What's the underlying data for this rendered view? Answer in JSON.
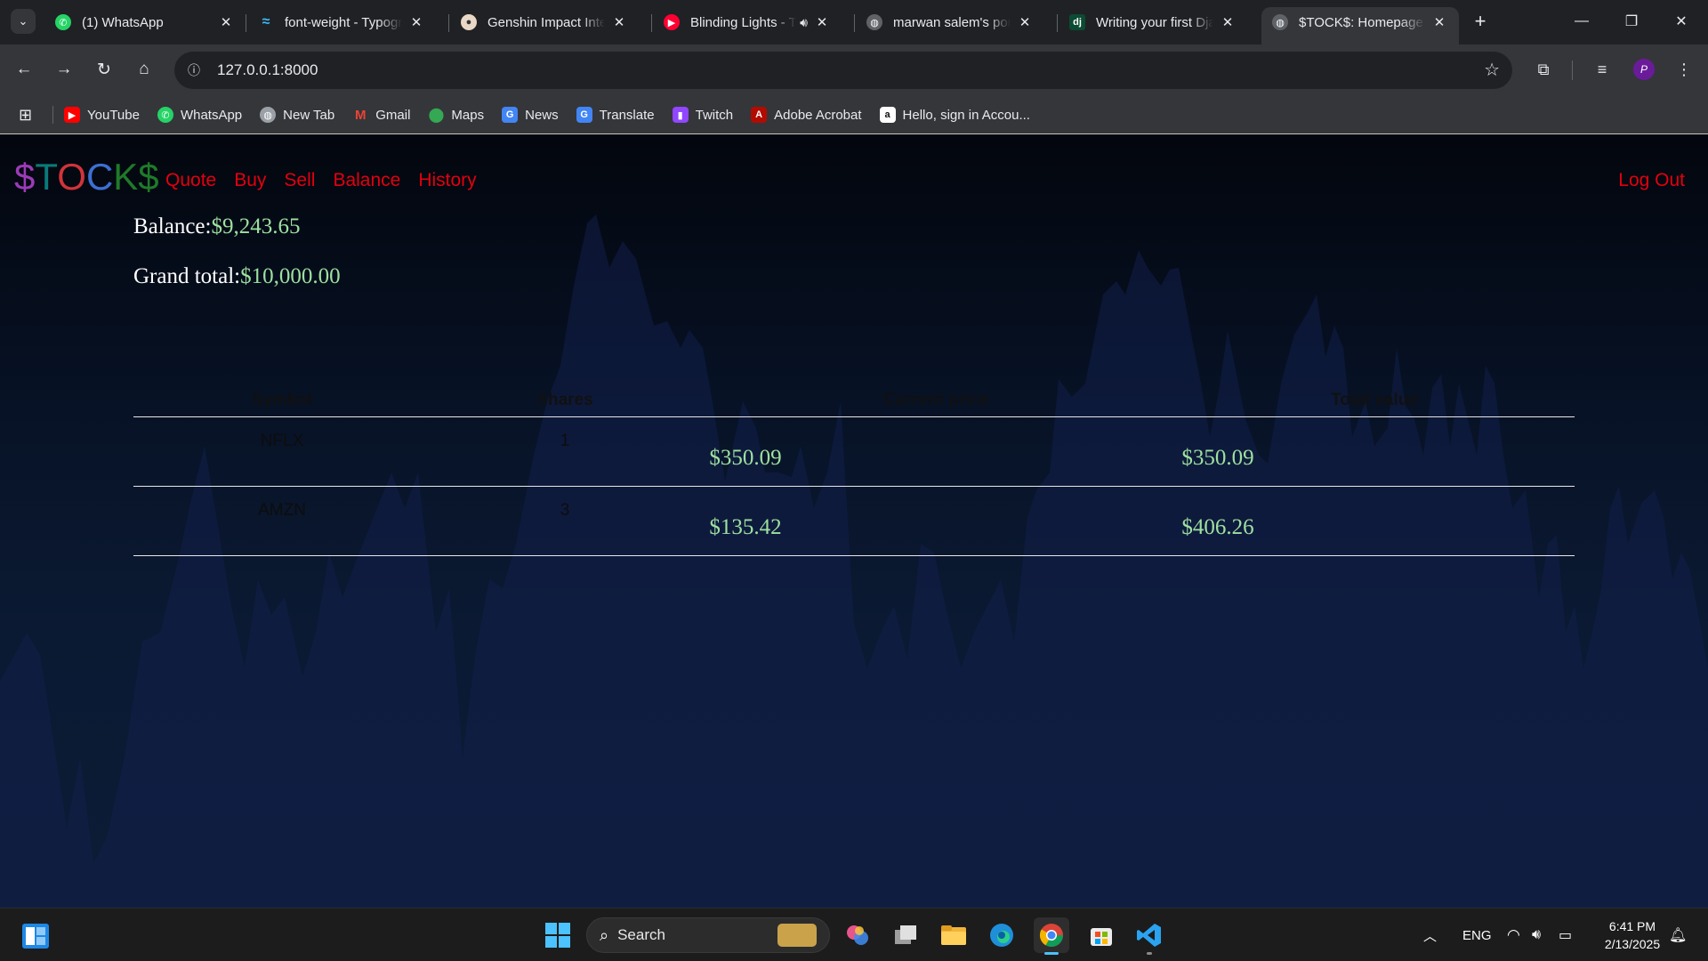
{
  "browser": {
    "tabs": [
      {
        "label": "(1) WhatsApp",
        "icon": "whatsapp-icon",
        "badge": "1"
      },
      {
        "label": "font-weight - Typography",
        "icon": "tailwind-icon"
      },
      {
        "label": "Genshin Impact Interactive",
        "icon": "genshin-icon"
      },
      {
        "label": "Blinding Lights - The Weeknd",
        "icon": "youtube-music-icon",
        "audio": true
      },
      {
        "label": "marwan salem's portfolio",
        "icon": "globe-icon"
      },
      {
        "label": "Writing your first Django app",
        "icon": "django-icon",
        "fav_text": "dj"
      },
      {
        "label": "$TOCK$: Homepage",
        "icon": "globe-icon",
        "active": true
      }
    ],
    "url": "127.0.0.1:8000",
    "profile_initial": "P",
    "bookmarks": [
      {
        "label": "YouTube",
        "icon": "youtube-icon",
        "color": "#ff0000"
      },
      {
        "label": "WhatsApp",
        "icon": "whatsapp-icon",
        "color": "#25d366"
      },
      {
        "label": "New Tab",
        "icon": "globe-icon",
        "color": "#9aa0a6"
      },
      {
        "label": "Gmail",
        "icon": "gmail-icon",
        "color": "#ea4335"
      },
      {
        "label": "Maps",
        "icon": "maps-icon",
        "color": "#34a853"
      },
      {
        "label": "News",
        "icon": "news-icon",
        "color": "#4285f4"
      },
      {
        "label": "Translate",
        "icon": "translate-icon",
        "color": "#4285f4"
      },
      {
        "label": "Twitch",
        "icon": "twitch-icon",
        "color": "#9146ff"
      },
      {
        "label": "Adobe Acrobat",
        "icon": "acrobat-icon",
        "color": "#b30b00"
      },
      {
        "label": "Hello, sign in Accou...",
        "icon": "amazon-icon",
        "color": "#ffffff"
      }
    ]
  },
  "app": {
    "brand_letters": [
      {
        "ch": "$",
        "color": "#9b3bb8"
      },
      {
        "ch": "T",
        "color": "#0a7a7a"
      },
      {
        "ch": "O",
        "color": "#d0343a"
      },
      {
        "ch": "C",
        "color": "#3d6fd1"
      },
      {
        "ch": "K",
        "color": "#1e7a2a"
      },
      {
        "ch": "$",
        "color": "#1e7a2a"
      }
    ],
    "nav": [
      "Quote",
      "Buy",
      "Sell",
      "Balance",
      "History"
    ],
    "logout": "Log Out",
    "balance_label": "Balance:",
    "balance_value": "$9,243.65",
    "grand_total_label": "Grand total:",
    "grand_total_value": "$10,000.00",
    "table": {
      "headers": [
        "Symbol",
        "Shares",
        "Current price",
        "Total value"
      ],
      "rows": [
        {
          "symbol": "NFLX",
          "shares": "1",
          "price": "$350.09",
          "total": "$350.09"
        },
        {
          "symbol": "AMZN",
          "shares": "3",
          "price": "$135.42",
          "total": "$406.26"
        }
      ]
    }
  },
  "taskbar": {
    "search": "Search",
    "language": "ENG",
    "time": "6:41 PM",
    "date": "2/13/2025"
  }
}
